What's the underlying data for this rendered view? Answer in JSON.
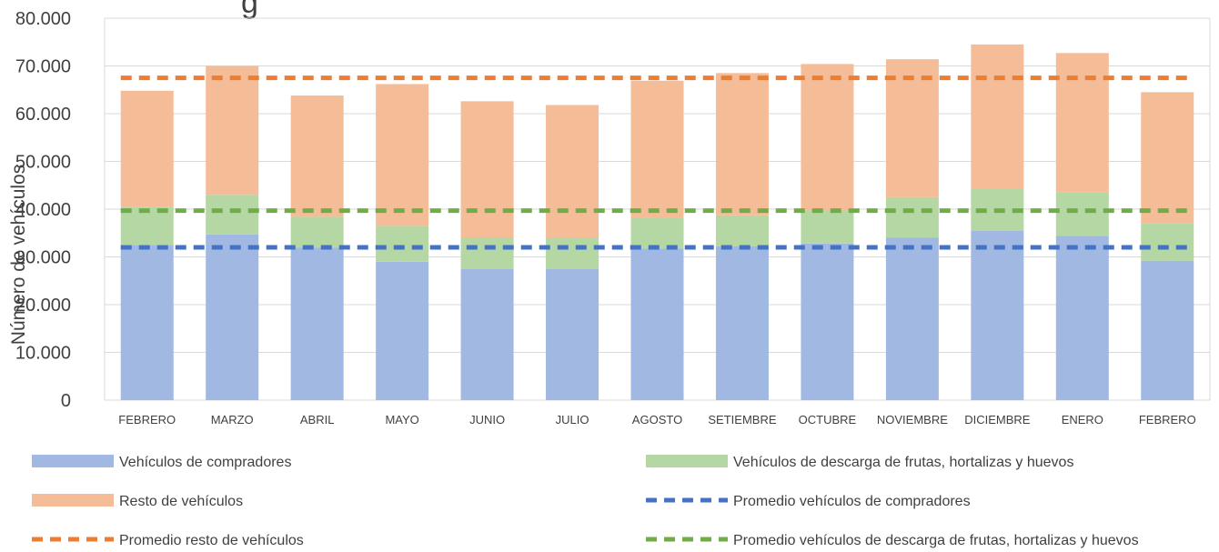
{
  "chart_data": {
    "type": "bar",
    "stacked": true,
    "title_fragment": "g",
    "ylabel": "Número de vehículos",
    "ylim": [
      0,
      80000
    ],
    "yticks": [
      "0",
      "10.000",
      "20.000",
      "30.000",
      "40.000",
      "50.000",
      "60.000",
      "70.000",
      "80.000"
    ],
    "yticks_values": [
      0,
      10000,
      20000,
      30000,
      40000,
      50000,
      60000,
      70000,
      80000
    ],
    "grid": true,
    "categories": [
      "FEBRERO",
      "MARZO",
      "ABRIL",
      "MAYO",
      "JUNIO",
      "JULIO",
      "AGOSTO",
      "SETIEMBRE",
      "OCTUBRE",
      "NOVIEMBRE",
      "DICIEMBRE",
      "ENERO",
      "FEBRERO"
    ],
    "series": [
      {
        "name": "Vehículos de compradores",
        "color": "#a0b8e2",
        "values": [
          32500,
          34700,
          31900,
          29000,
          27500,
          27500,
          31700,
          32200,
          32800,
          34000,
          35500,
          34400,
          29200
        ]
      },
      {
        "name": "Vehículos de descarga de frutas, hortalizas y huevos",
        "color": "#b5d7a3",
        "values": [
          8000,
          8300,
          6500,
          7500,
          6500,
          6400,
          6400,
          6500,
          7000,
          8500,
          8800,
          9100,
          7800
        ]
      },
      {
        "name": "Resto de vehículos",
        "color": "#f5bc98",
        "values": [
          24300,
          27000,
          25400,
          29700,
          28600,
          27900,
          28800,
          29800,
          30600,
          28900,
          30200,
          29200,
          27500
        ]
      }
    ],
    "averages": [
      {
        "name": "Promedio vehículos de compradores",
        "color": "#4472c4",
        "value": 32000
      },
      {
        "name": "Promedio resto de vehículos",
        "color": "#ed7d31",
        "value": 67500
      },
      {
        "name": "Promedio vehículos de descarga de frutas, hortalizas y huevos",
        "color": "#70ad47",
        "value": 39700
      }
    ],
    "legend": [
      {
        "name": "Vehículos de compradores",
        "kind": "bar",
        "color": "#a0b8e2"
      },
      {
        "name": "Vehículos de descarga de frutas, hortalizas y huevos",
        "kind": "bar",
        "color": "#b5d7a3"
      },
      {
        "name": "Resto de vehículos",
        "kind": "bar",
        "color": "#f5bc98"
      },
      {
        "name": "Promedio vehículos de compradores",
        "kind": "dash",
        "color": "#4472c4"
      },
      {
        "name": "Promedio resto de vehículos",
        "kind": "dash",
        "color": "#ed7d31"
      },
      {
        "name": "Promedio vehículos de descarga de frutas, hortalizas y huevos",
        "kind": "dash",
        "color": "#70ad47"
      }
    ],
    "legend_position": "bottom"
  }
}
